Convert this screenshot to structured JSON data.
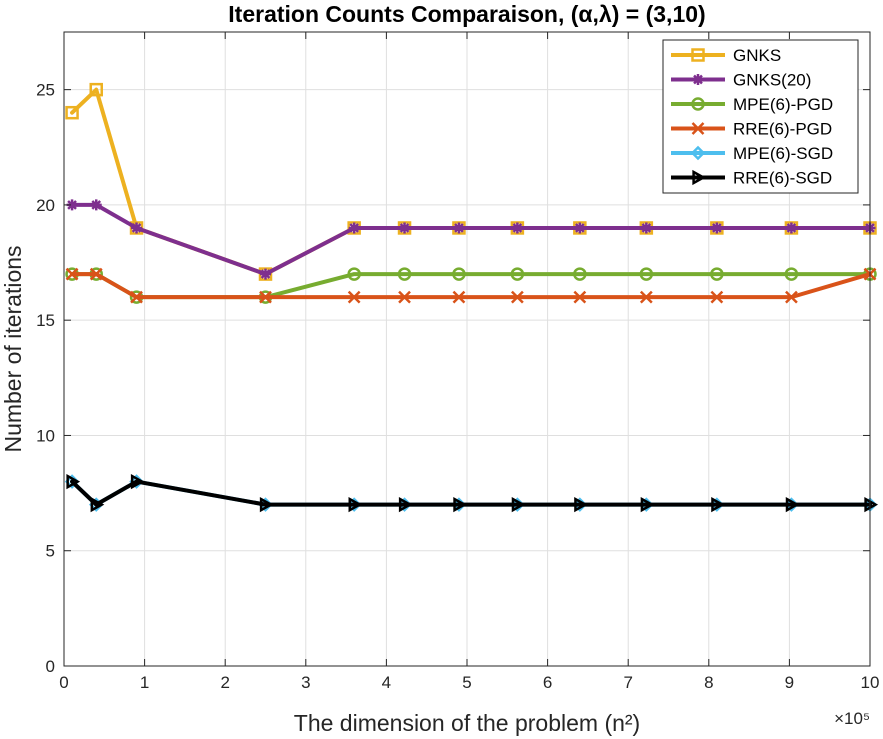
{
  "chart_data": {
    "type": "line",
    "title": "Iteration Counts Comparaison, (α,λ) = (3,10)",
    "xlabel": "The dimension of the problem (n²)",
    "ylabel": "Number of iterations",
    "x_exponent_label": "×10⁵",
    "xlim": [
      0,
      10
    ],
    "ylim": [
      0,
      27.5
    ],
    "xticks": [
      0,
      1,
      2,
      3,
      4,
      5,
      6,
      7,
      8,
      9,
      10
    ],
    "yticks": [
      0,
      5,
      10,
      15,
      20,
      25
    ],
    "grid": true,
    "legend_position": "top-right",
    "x": [
      0.1,
      0.4,
      0.9,
      2.5,
      3.6,
      4.225,
      4.9,
      5.625,
      6.4,
      7.225,
      8.1,
      9.025,
      10.0
    ],
    "series": [
      {
        "name": "GNKS",
        "color": "#EDB120",
        "marker": "square",
        "x": [
          0.1,
          0.4,
          0.9,
          2.5,
          3.6,
          4.225,
          4.9,
          5.625,
          6.4,
          7.225,
          8.1,
          9.025,
          10.0
        ],
        "values": [
          24,
          25,
          19,
          17,
          19,
          19,
          19,
          19,
          19,
          19,
          19,
          19,
          19
        ]
      },
      {
        "name": "GNKS(20)",
        "color": "#7E2F8E",
        "marker": "star",
        "x": [
          0.1,
          0.4,
          0.9,
          2.5,
          3.6,
          4.225,
          4.9,
          5.625,
          6.4,
          7.225,
          8.1,
          9.025,
          10.0
        ],
        "values": [
          20,
          20,
          19,
          17,
          19,
          19,
          19,
          19,
          19,
          19,
          19,
          19,
          19
        ]
      },
      {
        "name": "MPE(6)-PGD",
        "color": "#77AC30",
        "marker": "circle",
        "x": [
          0.1,
          0.4,
          0.9,
          2.5,
          3.6,
          4.225,
          4.9,
          5.625,
          6.4,
          7.225,
          8.1,
          9.025,
          10.0
        ],
        "values": [
          17,
          17,
          16,
          16,
          17,
          17,
          17,
          17,
          17,
          17,
          17,
          17,
          17
        ]
      },
      {
        "name": "RRE(6)-PGD",
        "color": "#D95319",
        "marker": "x",
        "x": [
          0.1,
          0.4,
          0.9,
          2.5,
          3.6,
          4.225,
          4.9,
          5.625,
          6.4,
          7.225,
          8.1,
          9.025,
          10.0
        ],
        "values": [
          17,
          17,
          16,
          16,
          16,
          16,
          16,
          16,
          16,
          16,
          16,
          16,
          17
        ]
      },
      {
        "name": "MPE(6)-SGD",
        "color": "#4DBEEE",
        "marker": "diamond",
        "x": [
          0.1,
          0.4,
          0.9,
          2.5,
          3.6,
          4.225,
          4.9,
          5.625,
          6.4,
          7.225,
          8.1,
          9.025,
          10.0
        ],
        "values": [
          8,
          7,
          8,
          7,
          7,
          7,
          7,
          7,
          7,
          7,
          7,
          7,
          7
        ]
      },
      {
        "name": "RRE(6)-SGD",
        "color": "#000000",
        "marker": "triangle-right",
        "x": [
          0.1,
          0.4,
          0.9,
          2.5,
          3.6,
          4.225,
          4.9,
          5.625,
          6.4,
          7.225,
          8.1,
          9.025,
          10.0
        ],
        "values": [
          8,
          7,
          8,
          7,
          7,
          7,
          7,
          7,
          7,
          7,
          7,
          7,
          7
        ]
      }
    ]
  }
}
